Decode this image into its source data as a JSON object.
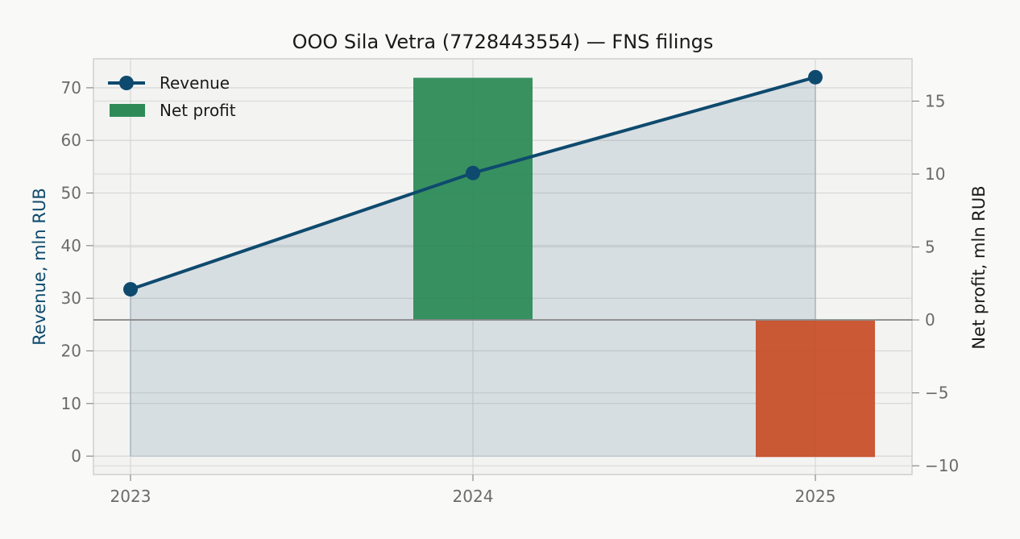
{
  "chart_data": {
    "type": "line+bar",
    "title": "OOO Sila Vetra (7728443554) — FNS filings",
    "x": [
      "2023",
      "2024",
      "2025"
    ],
    "series": [
      {
        "name": "Revenue",
        "type": "line",
        "axis": "left",
        "values": [
          31.7,
          53.8,
          72.0
        ],
        "color": "#0e4a6e"
      },
      {
        "name": "Net profit",
        "type": "bar",
        "axis": "right",
        "values": [
          null,
          16.6,
          -9.4
        ],
        "colors": [
          "#2e8b57",
          "#c8502a"
        ]
      }
    ],
    "ylabel": "Revenue, mln RUB",
    "ylabel_right": "Net profit, mln RUB",
    "ylim": [
      -3.5,
      75.5
    ],
    "ylim_right": [
      -10.6,
      17.9
    ],
    "yticks": [
      "0",
      "10",
      "20",
      "30",
      "40",
      "50",
      "60",
      "70"
    ],
    "yticks_right": [
      "−10",
      "−5",
      "0",
      "5",
      "10",
      "15"
    ],
    "grid": true,
    "legend_position": "top-left"
  }
}
